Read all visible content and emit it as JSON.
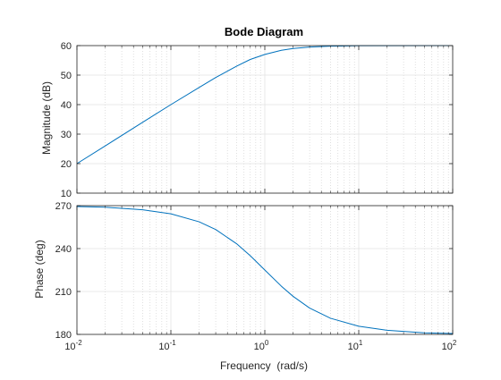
{
  "chart_data": {
    "type": "line",
    "title": "Bode Diagram",
    "xlabel": "Frequency  (rad/s)",
    "xscale": "log",
    "xlim": [
      0.01,
      100
    ],
    "x_ticks": [
      {
        "value": 0.01,
        "base": "10",
        "exp": "-2"
      },
      {
        "value": 0.1,
        "base": "10",
        "exp": "-1"
      },
      {
        "value": 1,
        "base": "10",
        "exp": "0"
      },
      {
        "value": 10,
        "base": "10",
        "exp": "1"
      },
      {
        "value": 100,
        "base": "10",
        "exp": "2"
      }
    ],
    "grid": true,
    "line_color": "#0072bd",
    "panels": [
      {
        "name": "magnitude",
        "ylabel": "Magnitude (dB)",
        "ylim": [
          10,
          60
        ],
        "yticks": [
          10,
          20,
          30,
          40,
          50,
          60
        ],
        "points": [
          [
            0.01,
            20
          ],
          [
            0.02,
            26
          ],
          [
            0.05,
            34
          ],
          [
            0.1,
            40
          ],
          [
            0.2,
            45.8
          ],
          [
            0.3,
            49.2
          ],
          [
            0.5,
            53
          ],
          [
            0.7,
            55.3
          ],
          [
            1,
            57
          ],
          [
            1.5,
            58.4
          ],
          [
            2,
            59
          ],
          [
            3,
            59.5
          ],
          [
            5,
            59.8
          ],
          [
            10,
            59.96
          ],
          [
            100,
            60
          ]
        ]
      },
      {
        "name": "phase",
        "ylabel": "Phase (deg)",
        "ylim": [
          180,
          270
        ],
        "yticks": [
          180,
          210,
          240,
          270
        ],
        "points": [
          [
            0.01,
            269.4
          ],
          [
            0.02,
            268.9
          ],
          [
            0.05,
            267.1
          ],
          [
            0.1,
            264.3
          ],
          [
            0.2,
            258.7
          ],
          [
            0.3,
            253.3
          ],
          [
            0.5,
            243.4
          ],
          [
            0.7,
            235
          ],
          [
            1,
            225
          ],
          [
            1.5,
            213.7
          ],
          [
            2,
            206.6
          ],
          [
            3,
            198.4
          ],
          [
            5,
            191.3
          ],
          [
            10,
            185.7
          ],
          [
            20,
            182.9
          ],
          [
            50,
            181.1
          ],
          [
            100,
            180.6
          ]
        ]
      }
    ]
  }
}
